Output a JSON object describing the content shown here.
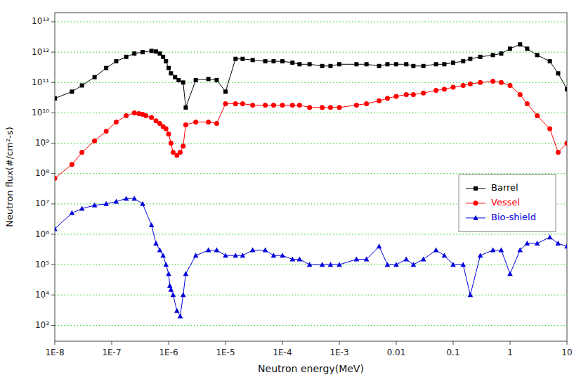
{
  "chart_data": {
    "type": "line",
    "log": true,
    "grid": "y",
    "legend": "right",
    "xlabel": "Neutron energy(MeV)",
    "ylabel": "Neutron flux(#/cm²-s)",
    "xlim": [
      1e-08,
      10
    ],
    "ylim": [
      300,
      20000000000000.0
    ],
    "xticks": [
      {
        "value": 1e-08,
        "label": "1E-8"
      },
      {
        "value": 1e-07,
        "label": "1E-7"
      },
      {
        "value": 1e-06,
        "label": "1E-6"
      },
      {
        "value": 1e-05,
        "label": "1E-5"
      },
      {
        "value": 0.0001,
        "label": "1E-4"
      },
      {
        "value": 0.001,
        "label": "1E-3"
      },
      0.01,
      0.1,
      1,
      10
    ],
    "yticks": [
      {
        "value": 1000.0,
        "label": "10³"
      },
      {
        "value": 10000.0,
        "label": "10⁴"
      },
      {
        "value": 100000.0,
        "label": "10⁵"
      },
      {
        "value": 1000000.0,
        "label": "10⁶"
      },
      {
        "value": 10000000.0,
        "label": "10⁷"
      },
      {
        "value": 100000000.0,
        "label": "10⁸"
      },
      {
        "value": 1000000000.0,
        "label": "10⁹"
      },
      {
        "value": 10000000000.0,
        "label": "10¹⁰"
      },
      {
        "value": 100000000000.0,
        "label": "10¹¹"
      },
      {
        "value": 1000000000000.0,
        "label": "10¹²"
      },
      {
        "value": 10000000000000.0,
        "label": "10¹³"
      }
    ],
    "series": [
      {
        "name": "Barrel",
        "color": "#000000",
        "marker": "square",
        "x": [
          1e-08,
          2e-08,
          3e-08,
          5e-08,
          8e-08,
          1.2e-07,
          1.8e-07,
          2.5e-07,
          3.5e-07,
          5e-07,
          6e-07,
          7e-07,
          8e-07,
          9e-07,
          1e-06,
          1.1e-06,
          1.3e-06,
          1.5e-06,
          1.8e-06,
          2e-06,
          3e-06,
          5e-06,
          7e-06,
          1e-05,
          1.5e-05,
          2e-05,
          3e-05,
          5e-05,
          7e-05,
          0.0001,
          0.00015,
          0.0002,
          0.0003,
          0.0005,
          0.0007,
          0.001,
          0.002,
          0.003,
          0.005,
          0.007,
          0.01,
          0.015,
          0.02,
          0.03,
          0.05,
          0.07,
          0.1,
          0.15,
          0.2,
          0.3,
          0.5,
          0.7,
          1.0,
          1.5,
          2.0,
          3.0,
          5.0,
          7.0,
          10.0
        ],
        "values": [
          30000000000.0,
          50000000000.0,
          80000000000.0,
          150000000000.0,
          300000000000.0,
          500000000000.0,
          700000000000.0,
          900000000000.0,
          1000000000000.0,
          1100000000000.0,
          1050000000000.0,
          900000000000.0,
          700000000000.0,
          500000000000.0,
          300000000000.0,
          200000000000.0,
          150000000000.0,
          120000000000.0,
          100000000000.0,
          15000000000.0,
          120000000000.0,
          130000000000.0,
          120000000000.0,
          50000000000.0,
          600000000000.0,
          600000000000.0,
          550000000000.0,
          500000000000.0,
          500000000000.0,
          500000000000.0,
          450000000000.0,
          400000000000.0,
          400000000000.0,
          350000000000.0,
          350000000000.0,
          400000000000.0,
          400000000000.0,
          400000000000.0,
          350000000000.0,
          400000000000.0,
          400000000000.0,
          400000000000.0,
          350000000000.0,
          350000000000.0,
          400000000000.0,
          400000000000.0,
          450000000000.0,
          500000000000.0,
          600000000000.0,
          700000000000.0,
          800000000000.0,
          900000000000.0,
          1300000000000.0,
          1800000000000.0,
          1300000000000.0,
          800000000000.0,
          500000000000.0,
          200000000000.0,
          60000000000.0
        ]
      },
      {
        "name": "Vessel",
        "color": "#ff0000",
        "marker": "circle",
        "x": [
          1e-08,
          2e-08,
          3e-08,
          5e-08,
          8e-08,
          1.2e-07,
          1.8e-07,
          2.5e-07,
          3e-07,
          3.5e-07,
          4e-07,
          5e-07,
          6e-07,
          7e-07,
          8e-07,
          9e-07,
          1e-06,
          1.1e-06,
          1.2e-06,
          1.4e-06,
          1.6e-06,
          1.8e-06,
          2e-06,
          3e-06,
          5e-06,
          7e-06,
          1e-05,
          1.5e-05,
          2e-05,
          3e-05,
          5e-05,
          7e-05,
          0.0001,
          0.00015,
          0.0002,
          0.0003,
          0.0005,
          0.0007,
          0.001,
          0.002,
          0.003,
          0.005,
          0.007,
          0.01,
          0.015,
          0.02,
          0.03,
          0.05,
          0.07,
          0.1,
          0.15,
          0.2,
          0.3,
          0.5,
          0.7,
          1.0,
          1.5,
          2.0,
          3.0,
          5.0,
          7.0,
          10.0
        ],
        "values": [
          70000000.0,
          200000000.0,
          500000000.0,
          1200000000.0,
          2500000000.0,
          5000000000.0,
          8000000000.0,
          10000000000.0,
          9500000000.0,
          9000000000.0,
          8000000000.0,
          7000000000.0,
          5500000000.0,
          4500000000.0,
          3500000000.0,
          3000000000.0,
          2000000000.0,
          1000000000.0,
          500000000.0,
          400000000.0,
          500000000.0,
          800000000.0,
          4000000000.0,
          5000000000.0,
          5000000000.0,
          4500000000.0,
          20000000000.0,
          20000000000.0,
          20000000000.0,
          18000000000.0,
          18000000000.0,
          18000000000.0,
          18000000000.0,
          18000000000.0,
          18000000000.0,
          15000000000.0,
          15000000000.0,
          15000000000.0,
          15000000000.0,
          18000000000.0,
          20000000000.0,
          25000000000.0,
          30000000000.0,
          35000000000.0,
          40000000000.0,
          40000000000.0,
          45000000000.0,
          55000000000.0,
          60000000000.0,
          70000000000.0,
          80000000000.0,
          90000000000.0,
          100000000000.0,
          110000000000.0,
          100000000000.0,
          80000000000.0,
          40000000000.0,
          20000000000.0,
          8000000000.0,
          3000000000.0,
          500000000.0,
          1000000000.0
        ]
      },
      {
        "name": "Bio-shield",
        "color": "#0000dd",
        "marker": "triangle",
        "x": [
          1e-08,
          2e-08,
          3e-08,
          5e-08,
          8e-08,
          1.2e-07,
          1.8e-07,
          2.5e-07,
          3.5e-07,
          5e-07,
          6e-07,
          7e-07,
          8e-07,
          9e-07,
          1e-06,
          1.05e-06,
          1.1e-06,
          1.2e-06,
          1.4e-06,
          1.6e-06,
          1.8e-06,
          2e-06,
          3e-06,
          5e-06,
          7e-06,
          1e-05,
          1.5e-05,
          2e-05,
          3e-05,
          5e-05,
          7e-05,
          0.0001,
          0.00015,
          0.0002,
          0.0003,
          0.0005,
          0.0007,
          0.001,
          0.002,
          0.003,
          0.005,
          0.007,
          0.01,
          0.015,
          0.02,
          0.03,
          0.05,
          0.07,
          0.1,
          0.15,
          0.2,
          0.3,
          0.5,
          0.7,
          1.0,
          1.5,
          2.0,
          3.0,
          5.0,
          7.0,
          10.0
        ],
        "values": [
          1500000.0,
          5000000.0,
          7000000.0,
          9000000.0,
          10000000.0,
          12000000.0,
          15000000.0,
          15000000.0,
          10000000.0,
          2000000.0,
          500000.0,
          300000.0,
          200000.0,
          100000.0,
          50000.0,
          20000.0,
          15000.0,
          10000.0,
          3000.0,
          2000.0,
          10000.0,
          50000.0,
          200000.0,
          300000.0,
          300000.0,
          200000.0,
          200000.0,
          200000.0,
          300000.0,
          300000.0,
          200000.0,
          200000.0,
          150000.0,
          150000.0,
          100000.0,
          100000.0,
          100000.0,
          100000.0,
          150000.0,
          150000.0,
          400000.0,
          100000.0,
          100000.0,
          150000.0,
          100000.0,
          150000.0,
          300000.0,
          200000.0,
          100000.0,
          100000.0,
          10000.0,
          200000.0,
          300000.0,
          300000.0,
          50000.0,
          300000.0,
          500000.0,
          500000.0,
          800000.0,
          500000.0,
          400000.0
        ]
      }
    ]
  }
}
